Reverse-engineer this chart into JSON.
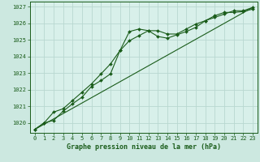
{
  "title": "Graphe pression niveau de la mer (hPa)",
  "background_color": "#cce8e0",
  "plot_bg_color": "#d8f0ea",
  "grid_color": "#b8d8d0",
  "line_color": "#1a5c1a",
  "marker_color": "#1a5c1a",
  "xlim": [
    -0.5,
    23.5
  ],
  "ylim": [
    1019.4,
    1027.3
  ],
  "yticks": [
    1020,
    1021,
    1022,
    1023,
    1024,
    1025,
    1026,
    1027
  ],
  "xticks": [
    0,
    1,
    2,
    3,
    4,
    5,
    6,
    7,
    8,
    9,
    10,
    11,
    12,
    13,
    14,
    15,
    16,
    17,
    18,
    19,
    20,
    21,
    22,
    23
  ],
  "series1_x": [
    0,
    1,
    2,
    3,
    4,
    5,
    6,
    7,
    8,
    9,
    10,
    11,
    12,
    13,
    14,
    15,
    16,
    17,
    18,
    19,
    20,
    21,
    22,
    23
  ],
  "series1_y": [
    1019.6,
    1020.0,
    1020.15,
    1020.7,
    1021.15,
    1021.55,
    1022.2,
    1022.55,
    1022.95,
    1024.35,
    1025.5,
    1025.65,
    1025.55,
    1025.2,
    1025.1,
    1025.3,
    1025.5,
    1025.75,
    1026.15,
    1026.45,
    1026.65,
    1026.65,
    1026.7,
    1026.85
  ],
  "series2_x": [
    0,
    1,
    2,
    3,
    4,
    5,
    6,
    7,
    8,
    9,
    10,
    11,
    12,
    13,
    14,
    15,
    16,
    17,
    18,
    19,
    20,
    21,
    22,
    23
  ],
  "series2_y": [
    1019.6,
    1020.0,
    1020.65,
    1020.85,
    1021.35,
    1021.85,
    1022.35,
    1022.95,
    1023.55,
    1024.35,
    1024.95,
    1025.25,
    1025.55,
    1025.55,
    1025.35,
    1025.35,
    1025.65,
    1025.95,
    1026.15,
    1026.35,
    1026.55,
    1026.75,
    1026.75,
    1026.95
  ],
  "series3_x": [
    0,
    23
  ],
  "series3_y": [
    1019.6,
    1026.95
  ]
}
